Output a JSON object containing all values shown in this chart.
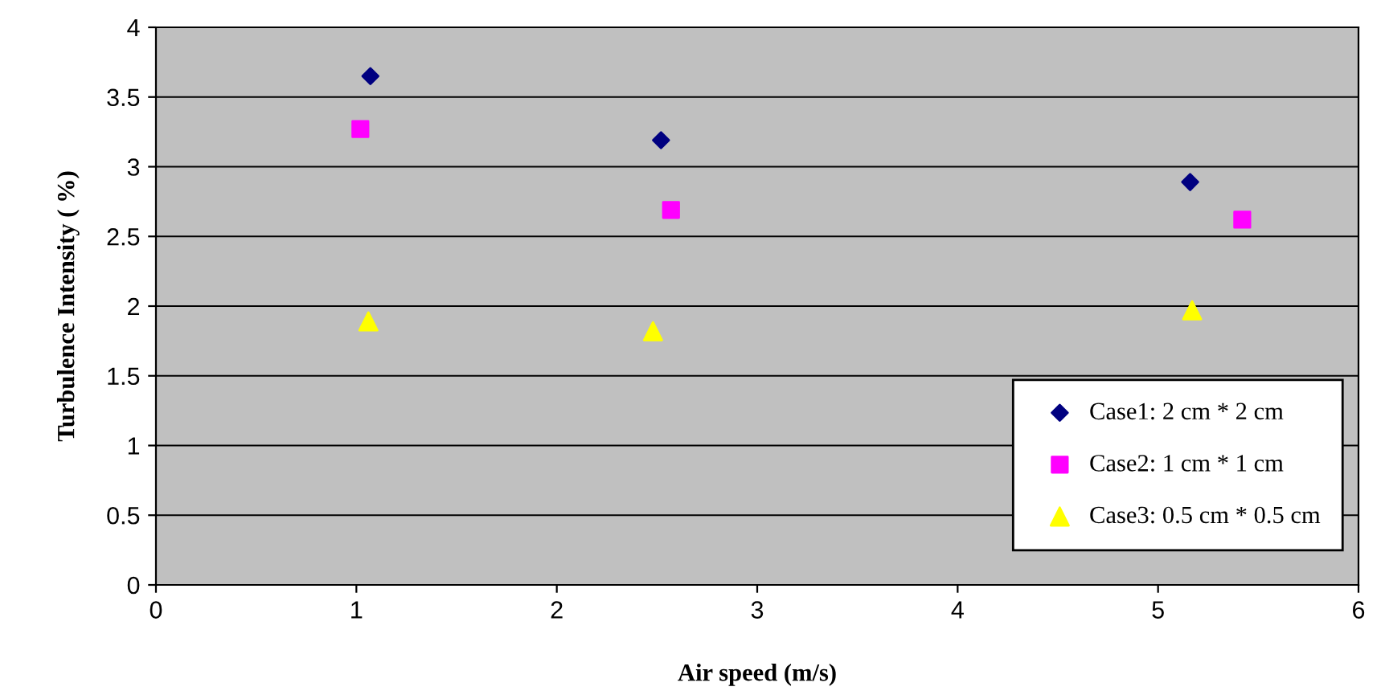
{
  "chart_data": {
    "type": "scatter",
    "xlabel": "Air speed (m/s)",
    "ylabel": "Turbulence Intensity ( %)",
    "xlim": [
      0,
      6
    ],
    "xticks": [
      0,
      1,
      2,
      3,
      4,
      5,
      6
    ],
    "ylim": [
      0,
      4
    ],
    "yticks": [
      0,
      0.5,
      1,
      1.5,
      2,
      2.5,
      3,
      3.5,
      4
    ],
    "grid": "y",
    "legend": "bottom right",
    "series": [
      {
        "name": "Case1: 2 cm * 2 cm",
        "color": "#000080",
        "marker": "diamond",
        "x": [
          1.07,
          2.52,
          5.16
        ],
        "values": [
          3.65,
          3.19,
          2.89
        ]
      },
      {
        "name": "Case2: 1 cm * 1 cm",
        "color": "#ff00ff",
        "marker": "square",
        "x": [
          1.02,
          2.57,
          5.42
        ],
        "values": [
          3.27,
          2.69,
          2.62
        ]
      },
      {
        "name": "Case3: 0.5 cm * 0.5 cm",
        "color": "#ffff00",
        "marker": "triangle",
        "x": [
          1.06,
          2.48,
          5.17
        ],
        "values": [
          1.89,
          1.82,
          1.97
        ]
      }
    ]
  }
}
